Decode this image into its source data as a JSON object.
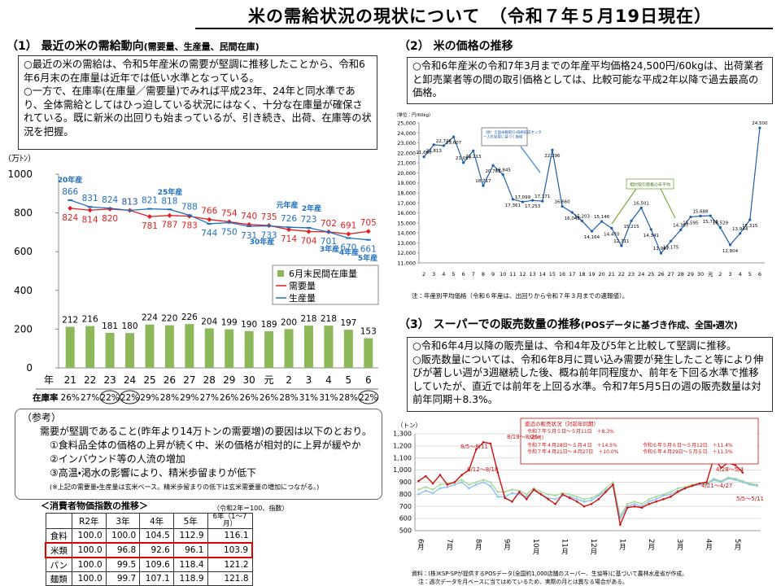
{
  "title": "米の需給状況の現状について　（令和７年５月19日現在）",
  "section1": {
    "heading": "（1） 最近の米の需給動向",
    "subheading": "(需要量、生産量、民間在庫)",
    "bullets": [
      "○最近の米の需給は、令和5年産米の需要が堅調に推移したことから、令和6年6月末の在庫量は近年では低い水準となっている。",
      "○一方で、在庫率(在庫量／需要量)でみれば平成23年、24年と同水準であり、全体需給としてはひっ迫している状況にはなく、十分な在庫量が確保されている。既に新米の出回りも始まっているが、引き続き、出荷、在庫等の状況を把握。"
    ]
  },
  "reference": {
    "heading": "（参考）",
    "lead": "需要が堅調であること(昨年より14万トンの需要増)の要因は以下のとおり。",
    "items": [
      "①食料品全体の価格の上昇が続く中、米の価格が相対的に上昇が緩やか",
      "②インバウンド等の人流の増加",
      "③高温・渇水の影響により、精米歩留まりが低下"
    ],
    "note": "(※上記の需要量・生産量は玄米ベース。精米歩留まりの低下は玄米需要量の増加につながる。)"
  },
  "table": {
    "title": "＜消費者物価指数の推移＞",
    "unit": "（令和2年＝100、指数）",
    "header": [
      "R2年",
      "3年",
      "4年",
      "5年",
      "6年（1～7月）"
    ],
    "rows": [
      [
        "食料",
        "100.0",
        "100.0",
        "104.5",
        "112.9",
        "116.1"
      ],
      [
        "米類",
        "100.0",
        "96.8",
        "92.6",
        "96.1",
        "103.9"
      ],
      [
        "パン",
        "100.0",
        "99.5",
        "109.6",
        "118.4",
        "121.2"
      ],
      [
        "麺類",
        "100.0",
        "99.7",
        "107.1",
        "118.9",
        "121.8"
      ]
    ]
  },
  "section2": {
    "heading": "（2） 米の価格の推移",
    "bullets": [
      "○令和6年産米の令和7年3月までの年産平均価格24,500円/60kgは、出荷業者と卸売業者等の間の取引価格としては、比較可能な平成2年以降で過去最高の価格。"
    ]
  },
  "section3": {
    "heading": "（3） スーパーでの販売数量の推移",
    "subheading": "(POSデータに基づき作成、全国・週次)",
    "bullets": [
      "○令和6年4月以降の販売量は、令和4年及び5年と比較して堅調に推移。",
      "○販売数量については、令和6年8月に買い込み需要が発生したこと等により伸びが著しい週が3週継続した後、概ね前年同程度か、前年を下回る水準で推移していたが、直近では前年を上回る水準。令和7年5月5日の週の販売数量は対前年同期＋8.3%。"
    ]
  },
  "chart_data": [
    {
      "type": "combo",
      "y_label": "（万ﾄﾝ）",
      "x_label": "年",
      "ylim": [
        0,
        1000
      ],
      "yticks": [
        0,
        200,
        400,
        600,
        800,
        1000
      ],
      "categories": [
        "21",
        "22",
        "23",
        "24",
        "25",
        "26",
        "27",
        "28",
        "29",
        "30",
        "元",
        "2",
        "3",
        "4",
        "5",
        "6"
      ],
      "series": [
        {
          "name": "6月末民間在庫量",
          "type": "bar",
          "color": "#8db85a",
          "values": [
            212,
            216,
            181,
            180,
            224,
            220,
            226,
            204,
            199,
            190,
            189,
            200,
            218,
            218,
            197,
            153
          ]
        },
        {
          "name": "需要量",
          "type": "line",
          "color": "#e02020",
          "values": [
            824,
            814,
            820,
            813,
            781,
            787,
            783,
            766,
            754,
            740,
            735,
            714,
            704,
            702,
            691,
            705
          ]
        },
        {
          "name": "生産量",
          "type": "line",
          "color": "#1f6fc0",
          "values": [
            866,
            831,
            824,
            813,
            821,
            818,
            788,
            744,
            750,
            731,
            733,
            726,
            723,
            701,
            670,
            661
          ]
        }
      ],
      "stock_ratio": {
        "label": "在庫率",
        "values": [
          26,
          27,
          22,
          22,
          29,
          28,
          29,
          27,
          26,
          26,
          26,
          28,
          31,
          31,
          28,
          22
        ],
        "value_labels": [
          "26%",
          "27%",
          "22%",
          "22%",
          "29%",
          "28%",
          "29%",
          "27%",
          "26%",
          "26%",
          "26%",
          "28%",
          "31%",
          "31%",
          "28%",
          "22%"
        ]
      },
      "annotations": [
        "20年産",
        "25年産",
        "元年産",
        "2年産",
        "30年産",
        "3年産",
        "4年産",
        "5年産"
      ]
    },
    {
      "type": "line",
      "y_label": "（単位：円/60kg）",
      "ylim": [
        11000,
        25000
      ],
      "yticks": [
        {
          "value": 11000,
          "label": "11,000"
        },
        {
          "value": 12000,
          "label": "12,000"
        },
        {
          "value": 13000,
          "label": "13,000"
        },
        {
          "value": 14000,
          "label": "14,000"
        },
        {
          "value": 15000,
          "label": "15,000"
        },
        {
          "value": 16000,
          "label": "16,000"
        },
        {
          "value": 17000,
          "label": "17,000"
        },
        {
          "value": 18000,
          "label": "18,000"
        },
        {
          "value": 19000,
          "label": "19,000"
        },
        {
          "value": 20000,
          "label": "20,000"
        },
        {
          "value": 21000,
          "label": "21,000"
        },
        {
          "value": 22000,
          "label": "22,000"
        },
        {
          "value": 23000,
          "label": "23,000"
        },
        {
          "value": 24000,
          "label": "24,000"
        },
        {
          "value": 25000,
          "label": "25,000"
        }
      ],
      "categories": [
        "2",
        "3",
        "4",
        "5",
        "6",
        "7",
        "8",
        "9",
        "10",
        "11",
        "12",
        "13",
        "14",
        "15",
        "16",
        "17",
        "18",
        "19",
        "20",
        "21",
        "22",
        "23",
        "24",
        "25",
        "26",
        "27",
        "28",
        "29",
        "30",
        "元",
        "2",
        "3",
        "4",
        "5",
        "6"
      ],
      "series": [
        {
          "color": "#1f5fa8",
          "values": [
            21600,
            22813,
            22726,
            23607,
            21017,
            22213,
            18717,
            20751,
            19845,
            17361,
            17099,
            17253,
            17171,
            22296,
            16660,
            16048,
            15203,
            14164,
            15146,
            14470,
            12711,
            15215,
            16501,
            14341,
            11967,
            13175,
            14307,
            15595,
            15688,
            15716,
            14529,
            12804,
            13944,
            15315,
            24500
          ],
          "value_labels": [
            "21,600",
            "22,813",
            "22,726",
            "23,607",
            "21,017",
            "22,213",
            "18,717",
            "20,751",
            "19,845",
            "17,361",
            "17,099",
            "17,253",
            "17,171",
            "22,296",
            "16,660",
            "16,048",
            "15,203",
            "14,164",
            "15,146",
            "14,470",
            "12,711",
            "15,215",
            "16,501",
            "14,341",
            "11,967",
            "13,175",
            "14,307",
            "15,595",
            "15,688",
            "15,716",
            "14,529",
            "12,804",
            "13,944",
            "15,315",
            "24,500"
          ]
        }
      ],
      "annotations": [
        "（財）全国米穀取引・価格形成センター入札結果に基づく価格",
        "相対取引価格の年平均"
      ],
      "note": "注：年産別平均価格（令和６年産は、出回りから令和７年３月までの速報値）。"
    },
    {
      "type": "line",
      "y_label": "（トン）",
      "ylim": [
        500,
        1300
      ],
      "yticks": [
        500,
        600,
        700,
        800,
        900,
        {
          "value": 1000,
          "label": "1,000"
        },
        {
          "value": 1100,
          "label": "1,100"
        },
        {
          "value": 1200,
          "label": "1,200"
        },
        {
          "value": 1300,
          "label": "1,300"
        }
      ],
      "grid": true,
      "categories": [
        "6月",
        null,
        null,
        null,
        "7月",
        null,
        null,
        null,
        "8月",
        null,
        null,
        null,
        "9月",
        null,
        null,
        null,
        "10月",
        null,
        null,
        null,
        "11月",
        null,
        null,
        null,
        "12月",
        null,
        null,
        null,
        "1月",
        null,
        null,
        null,
        "2月",
        null,
        null,
        null,
        "3月",
        null,
        null,
        null,
        "4月",
        null,
        null,
        null,
        "5月",
        null,
        null,
        null
      ],
      "series": [
        {
          "color": "#a6d99a",
          "values": [
            840,
            860,
            840,
            880,
            890,
            900,
            920,
            880,
            900,
            920,
            900,
            820,
            820,
            840,
            830,
            800,
            850,
            820,
            800,
            790,
            810,
            800,
            780,
            760,
            770,
            800,
            850,
            900,
            620,
            720,
            740,
            720,
            760,
            780,
            800,
            820,
            850,
            860,
            880,
            890,
            890,
            930,
            910,
            940,
            930,
            910,
            890,
            880
          ]
        },
        {
          "color": "#8cc3ea",
          "values": [
            800,
            830,
            810,
            850,
            860,
            880,
            900,
            850,
            880,
            900,
            870,
            780,
            780,
            810,
            800,
            780,
            830,
            800,
            770,
            760,
            790,
            780,
            760,
            740,
            750,
            790,
            830,
            880,
            600,
            700,
            720,
            700,
            740,
            760,
            790,
            800,
            830,
            850,
            870,
            880,
            880,
            920,
            900,
            930,
            920,
            900,
            880,
            870
          ]
        },
        {
          "color": "#d01010",
          "values": [
            910,
            950,
            890,
            960,
            880,
            900,
            960,
            1000,
            1170,
            1230,
            1220,
            980,
            770,
            740,
            820,
            760,
            840,
            800,
            760,
            720,
            800,
            770,
            740,
            700,
            720,
            760,
            820,
            880,
            550,
            690,
            700,
            690,
            720,
            740,
            760,
            780,
            820,
            850,
            870,
            890,
            900,
            1100,
            1020,
            1060,
            1040,
            980,
            null,
            null
          ]
        }
      ],
      "annotations": [
        "8/19～8/25",
        "8/5～8/11",
        "8/12～8/18",
        "4/28～5/4",
        "4/21～4/27",
        "5/5～5/11"
      ],
      "inset": {
        "title": "直近の販売状況（対前年同期）",
        "lines": [
          "令和７年５月５日～５月11日　＋8.3%",
          "（参考）",
          "令和７年４月28日～５月４日　＋14.5%",
          "令和７年４月21日～４月27日　＋10.0%",
          "令和６年５月６日～５月12日　＋11.4%",
          "令和６年４月29日～５月５日　＋11.5%"
        ]
      },
      "source": "資料：(株)KSP-SPが提供するPOSデータ(全国約1,000店舗のスーパー、生協等)に基づいて農林水産省が作成。",
      "note": "注：週次データを月ベースに当てはめているため、実際の月とは異なる場合がある。"
    }
  ]
}
